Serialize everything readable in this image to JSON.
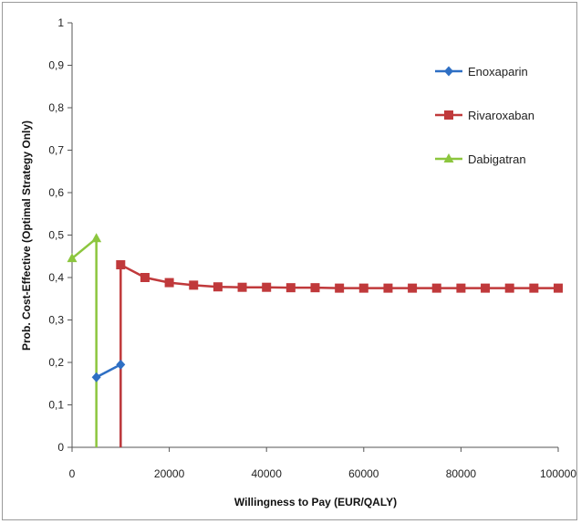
{
  "chart_data": {
    "type": "line",
    "title": "",
    "xlabel": "Willingness to Pay (EUR/QALY)",
    "ylabel": "Prob. Cost-Effective (Optimal Strategy Only)",
    "xlim": [
      0,
      100000
    ],
    "ylim": [
      0,
      1
    ],
    "x_ticks": [
      0,
      20000,
      40000,
      60000,
      80000,
      100000
    ],
    "x_tick_labels": [
      "0",
      "20000",
      "40000",
      "60000",
      "80000",
      "100000"
    ],
    "y_ticks": [
      0,
      0.1,
      0.2,
      0.3,
      0.4,
      0.5,
      0.6,
      0.7,
      0.8,
      0.9,
      1
    ],
    "y_tick_labels": [
      "0",
      "0,1",
      "0,2",
      "0,3",
      "0,4",
      "0,5",
      "0,6",
      "0,7",
      "0,8",
      "0,9",
      "1"
    ],
    "grid": false,
    "legend_position": "right",
    "series": [
      {
        "name": "Enoxaparin",
        "color": "#2e6fc4",
        "marker": "diamond",
        "x": [
          5000,
          10000
        ],
        "y": [
          0.165,
          0.195
        ],
        "drop_lines_x": [
          10000
        ]
      },
      {
        "name": "Rivaroxaban",
        "color": "#c0393b",
        "marker": "square",
        "x": [
          10000,
          15000,
          20000,
          25000,
          30000,
          35000,
          40000,
          45000,
          50000,
          55000,
          60000,
          65000,
          70000,
          75000,
          80000,
          85000,
          90000,
          95000,
          100000
        ],
        "y": [
          0.43,
          0.4,
          0.388,
          0.382,
          0.378,
          0.377,
          0.377,
          0.376,
          0.376,
          0.375,
          0.375,
          0.375,
          0.375,
          0.375,
          0.375,
          0.375,
          0.375,
          0.375,
          0.375
        ],
        "drop_lines_x": [
          10000
        ]
      },
      {
        "name": "Dabigatran",
        "color": "#8cc63e",
        "marker": "triangle",
        "x": [
          0,
          5000
        ],
        "y": [
          0.445,
          0.492
        ],
        "drop_lines_x": [
          5000
        ]
      }
    ]
  }
}
